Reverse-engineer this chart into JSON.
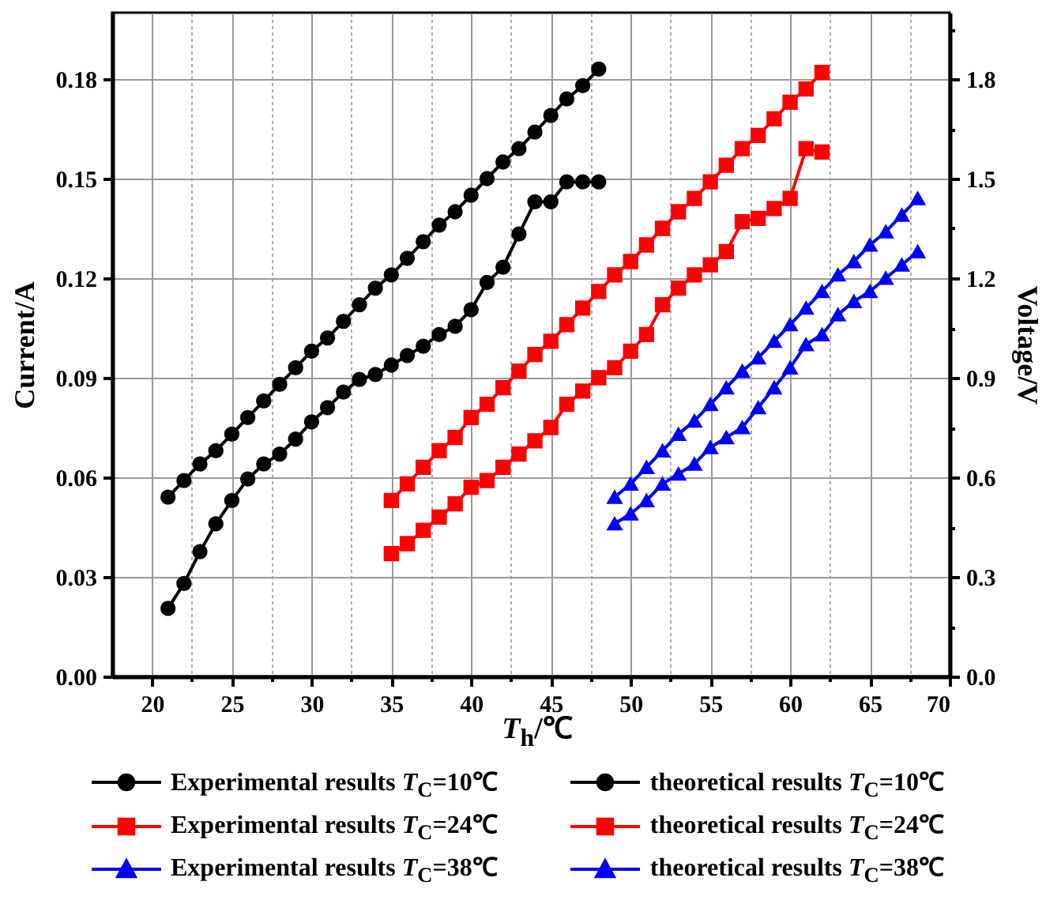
{
  "chart_data": {
    "type": "line",
    "xlabel": "T$_{h}$/℃",
    "ylabel": "Current/A",
    "y2label": "Voltage/V",
    "xlim": [
      17.5,
      70
    ],
    "xticks": [
      20,
      {
        "value": 22.5,
        "label": null
      },
      25,
      {
        "value": 27.5,
        "label": null
      },
      30,
      {
        "value": 32.5,
        "label": null
      },
      35,
      {
        "value": 37.5,
        "label": null
      },
      40,
      {
        "value": 42.5,
        "label": null
      },
      45,
      {
        "value": 47.5,
        "label": null
      },
      50,
      {
        "value": 52.5,
        "label": null
      },
      55,
      {
        "value": 57.5,
        "label": null
      },
      60,
      {
        "value": 62.5,
        "label": null
      },
      65,
      {
        "value": 67.5,
        "label": null
      },
      70
    ],
    "ylim": [
      0,
      0.2
    ],
    "yticks": [
      {
        "value": 0,
        "label": "0.00"
      },
      {
        "value": 0.015,
        "label": null
      },
      0.03,
      {
        "value": 0.045,
        "label": null
      },
      0.06,
      {
        "value": 0.075,
        "label": null
      },
      0.09,
      {
        "value": 0.105,
        "label": null
      },
      0.12,
      {
        "value": 0.135,
        "label": null
      },
      0.15,
      {
        "value": 0.165,
        "label": null
      },
      0.18,
      {
        "value": 0.195,
        "label": null
      }
    ],
    "y2lim": [
      0,
      2.0
    ],
    "y2ticks": [
      {
        "value": 0,
        "label": "0.0"
      },
      {
        "value": 0.15,
        "label": null
      },
      0.3,
      {
        "value": 0.45,
        "label": null
      },
      0.6,
      {
        "value": 0.75,
        "label": null
      },
      0.9,
      {
        "value": 1.05,
        "label": null
      },
      1.2,
      {
        "value": 1.35,
        "label": null
      },
      1.5,
      {
        "value": 1.65,
        "label": null
      },
      1.8,
      {
        "value": 1.95,
        "label": null
      }
    ],
    "grid": true,
    "legend": "bottom",
    "line_style": "solid",
    "series": [
      {
        "name": "Experimental results T$_{C}$=10℃",
        "color": "#000000",
        "marker": "circle",
        "x": [
          21,
          22,
          23,
          24,
          25,
          26,
          27,
          28,
          29,
          30,
          31,
          32,
          33,
          34,
          35,
          36,
          37,
          38,
          39,
          40,
          41,
          42,
          43,
          44,
          45,
          46,
          47,
          48
        ],
        "values": [
          0.0205,
          0.028,
          0.0376,
          0.046,
          0.053,
          0.0595,
          0.064,
          0.067,
          0.0715,
          0.0767,
          0.081,
          0.0857,
          0.0895,
          0.091,
          0.0938,
          0.0967,
          0.0995,
          0.103,
          0.1055,
          0.1105,
          0.1187,
          0.1233,
          0.1333,
          0.143,
          0.143,
          0.149,
          0.149,
          0.149
        ]
      },
      {
        "name": "theoretical results T$_{C}$=10℃",
        "color": "#000000",
        "marker": "circle",
        "x": [
          21,
          22,
          23,
          24,
          25,
          26,
          27,
          28,
          29,
          30,
          31,
          32,
          33,
          34,
          35,
          36,
          37,
          38,
          39,
          40,
          41,
          42,
          43,
          44,
          45,
          46,
          47,
          48
        ],
        "values": [
          0.054,
          0.059,
          0.064,
          0.068,
          0.073,
          0.078,
          0.083,
          0.088,
          0.093,
          0.098,
          0.102,
          0.107,
          0.112,
          0.117,
          0.121,
          0.126,
          0.131,
          0.136,
          0.14,
          0.145,
          0.15,
          0.155,
          0.159,
          0.164,
          0.169,
          0.174,
          0.178,
          0.183
        ]
      },
      {
        "name": "Experimental results T$_{C}$=24℃",
        "color": "#ff0000",
        "marker": "square",
        "x": [
          35,
          36,
          37,
          38,
          39,
          40,
          41,
          42,
          43,
          44,
          45,
          46,
          47,
          48,
          49,
          50,
          51,
          52,
          53,
          54,
          55,
          56,
          57,
          58,
          59,
          60,
          61,
          62
        ],
        "values": [
          0.037,
          0.04,
          0.044,
          0.048,
          0.052,
          0.057,
          0.059,
          0.063,
          0.067,
          0.071,
          0.075,
          0.082,
          0.086,
          0.09,
          0.093,
          0.098,
          0.103,
          0.112,
          0.117,
          0.121,
          0.124,
          0.128,
          0.137,
          0.138,
          0.141,
          0.144,
          0.159,
          0.158
        ]
      },
      {
        "name": "theoretical results T$_{C}$=24℃",
        "color": "#ff0000",
        "marker": "square",
        "x": [
          35,
          36,
          37,
          38,
          39,
          40,
          41,
          42,
          43,
          44,
          45,
          46,
          47,
          48,
          49,
          50,
          51,
          52,
          53,
          54,
          55,
          56,
          57,
          58,
          59,
          60,
          61,
          62
        ],
        "values": [
          0.053,
          0.058,
          0.063,
          0.068,
          0.072,
          0.078,
          0.082,
          0.087,
          0.092,
          0.097,
          0.101,
          0.106,
          0.111,
          0.116,
          0.121,
          0.125,
          0.13,
          0.135,
          0.14,
          0.144,
          0.149,
          0.154,
          0.159,
          0.163,
          0.168,
          0.173,
          0.177,
          0.182
        ]
      },
      {
        "name": "Experimental results T$_{C}$=38℃",
        "color": "#0000ff",
        "marker": "triangle",
        "x": [
          49,
          50,
          51,
          52,
          53,
          54,
          55,
          56,
          57,
          58,
          59,
          60,
          61,
          62,
          63,
          64,
          65,
          66,
          67,
          68
        ],
        "values": [
          0.046,
          0.049,
          0.053,
          0.058,
          0.061,
          0.064,
          0.069,
          0.072,
          0.075,
          0.081,
          0.087,
          0.093,
          0.1,
          0.103,
          0.109,
          0.113,
          0.116,
          0.12,
          0.124,
          0.128
        ]
      },
      {
        "name": "theoretical results T$_{C}$=38℃",
        "color": "#0000ff",
        "marker": "triangle",
        "x": [
          49,
          50,
          51,
          52,
          53,
          54,
          55,
          56,
          57,
          58,
          59,
          60,
          61,
          62,
          63,
          64,
          65,
          66,
          67,
          68
        ],
        "values": [
          0.054,
          0.058,
          0.063,
          0.068,
          0.073,
          0.077,
          0.082,
          0.087,
          0.092,
          0.096,
          0.101,
          0.106,
          0.111,
          0.116,
          0.121,
          0.125,
          0.13,
          0.134,
          0.139,
          0.144
        ]
      }
    ]
  }
}
